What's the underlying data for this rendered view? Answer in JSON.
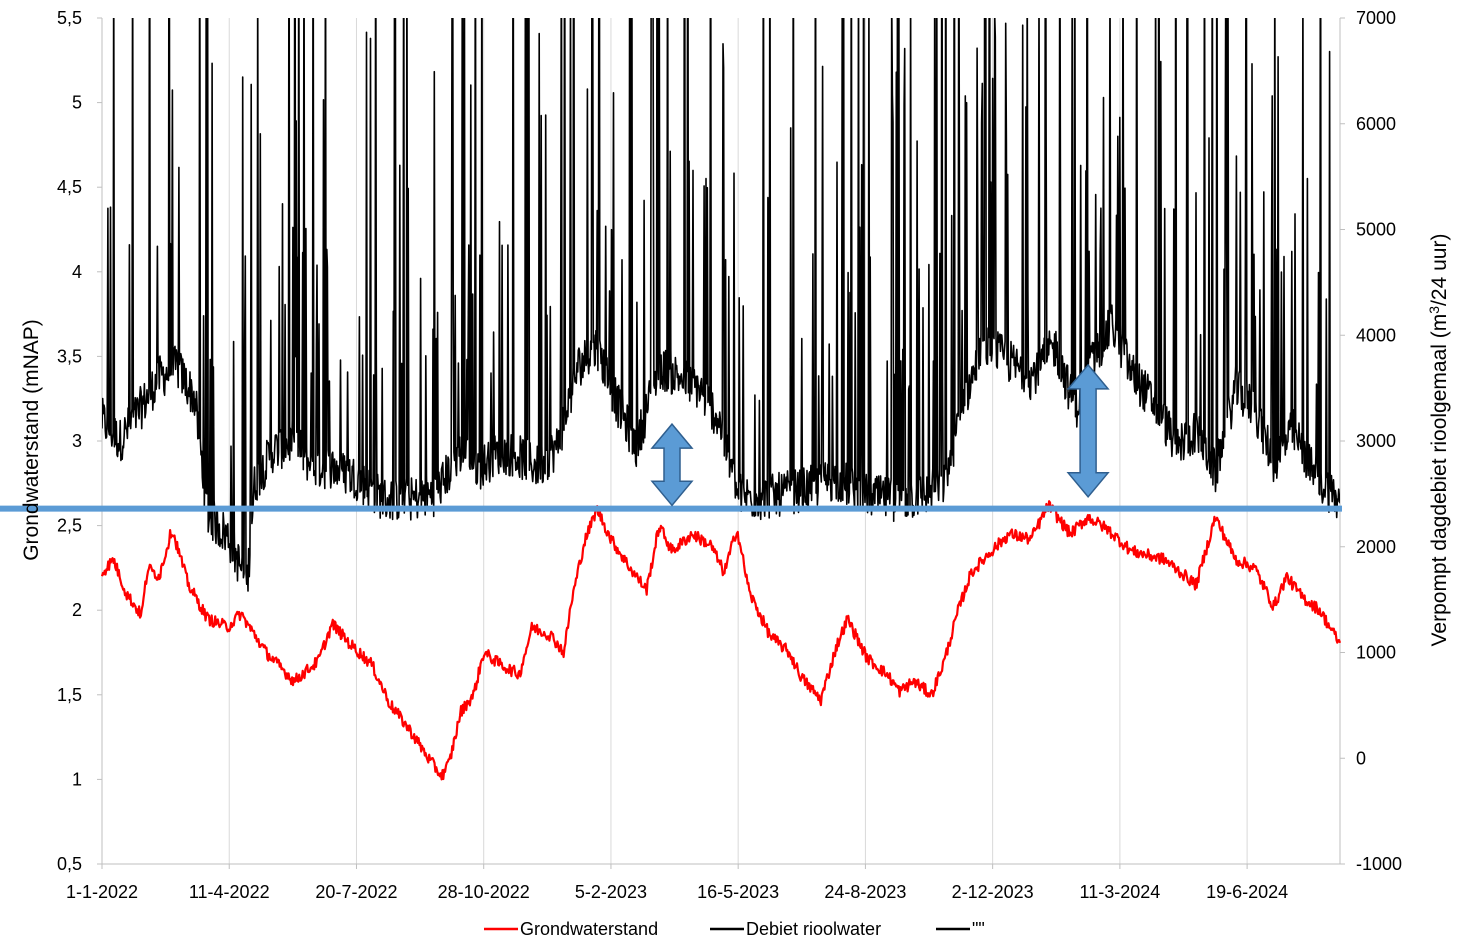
{
  "chart_data": {
    "type": "line",
    "x_ticks": [
      "1-1-2022",
      "11-4-2022",
      "20-7-2022",
      "28-10-2022",
      "5-2-2023",
      "16-5-2023",
      "24-8-2023",
      "2-12-2023",
      "11-3-2024",
      "19-6-2024"
    ],
    "x_range": [
      "2022-01-01",
      "2024-08-31"
    ],
    "y_left": {
      "label": "Grondwaterstand (mNAP)",
      "range": [
        0.5,
        5.5
      ],
      "ticks": [
        "0,5",
        "1",
        "1,5",
        "2",
        "2,5",
        "3",
        "3,5",
        "4",
        "4,5",
        "5",
        "5,5"
      ]
    },
    "y_right": {
      "label_prefix": "Verpompt dagdebiet rioolgemaal (m",
      "label_sup": "3",
      "label_suffix": "/24 uur)",
      "range": [
        -1000,
        7000
      ],
      "ticks": [
        "-1000",
        "0",
        "1000",
        "2000",
        "3000",
        "4000",
        "5000",
        "6000",
        "7000"
      ]
    },
    "grid": "vertical",
    "legend_position": "bottom",
    "series": [
      {
        "name": "Grondwaterstand",
        "axis": "left",
        "color": "#ff0000",
        "points": [
          [
            "2022-01-01",
            2.22
          ],
          [
            "2022-01-10",
            2.3
          ],
          [
            "2022-01-20",
            2.1
          ],
          [
            "2022-02-01",
            1.97
          ],
          [
            "2022-02-06",
            2.25
          ],
          [
            "2022-02-15",
            2.2
          ],
          [
            "2022-02-25",
            2.48
          ],
          [
            "2022-03-10",
            2.15
          ],
          [
            "2022-03-25",
            1.95
          ],
          [
            "2022-04-10",
            1.9
          ],
          [
            "2022-04-20",
            1.98
          ],
          [
            "2022-05-10",
            1.75
          ],
          [
            "2022-06-01",
            1.58
          ],
          [
            "2022-06-20",
            1.7
          ],
          [
            "2022-07-01",
            1.92
          ],
          [
            "2022-07-15",
            1.8
          ],
          [
            "2022-08-01",
            1.68
          ],
          [
            "2022-08-15",
            1.45
          ],
          [
            "2022-09-01",
            1.28
          ],
          [
            "2022-09-15",
            1.12
          ],
          [
            "2022-09-25",
            1.02
          ],
          [
            "2022-10-01",
            1.1
          ],
          [
            "2022-10-10",
            1.4
          ],
          [
            "2022-10-20",
            1.5
          ],
          [
            "2022-10-28",
            1.75
          ],
          [
            "2022-11-10",
            1.68
          ],
          [
            "2022-11-25",
            1.62
          ],
          [
            "2022-12-05",
            1.9
          ],
          [
            "2022-12-20",
            1.85
          ],
          [
            "2022-12-30",
            1.75
          ],
          [
            "2023-01-05",
            2.05
          ],
          [
            "2023-01-15",
            2.4
          ],
          [
            "2023-01-25",
            2.6
          ],
          [
            "2023-02-05",
            2.42
          ],
          [
            "2023-02-20",
            2.25
          ],
          [
            "2023-03-05",
            2.12
          ],
          [
            "2023-03-15",
            2.5
          ],
          [
            "2023-03-25",
            2.35
          ],
          [
            "2023-04-10",
            2.45
          ],
          [
            "2023-04-25",
            2.38
          ],
          [
            "2023-05-05",
            2.22
          ],
          [
            "2023-05-15",
            2.48
          ],
          [
            "2023-05-25",
            2.1
          ],
          [
            "2023-06-10",
            1.85
          ],
          [
            "2023-06-25",
            1.75
          ],
          [
            "2023-07-05",
            1.6
          ],
          [
            "2023-07-20",
            1.47
          ],
          [
            "2023-08-01",
            1.78
          ],
          [
            "2023-08-10",
            1.95
          ],
          [
            "2023-08-25",
            1.72
          ],
          [
            "2023-09-10",
            1.62
          ],
          [
            "2023-09-20",
            1.52
          ],
          [
            "2023-10-01",
            1.58
          ],
          [
            "2023-10-15",
            1.5
          ],
          [
            "2023-10-25",
            1.7
          ],
          [
            "2023-11-05",
            2.0
          ],
          [
            "2023-11-15",
            2.22
          ],
          [
            "2023-12-01",
            2.35
          ],
          [
            "2023-12-15",
            2.45
          ],
          [
            "2024-01-01",
            2.42
          ],
          [
            "2024-01-15",
            2.62
          ],
          [
            "2024-02-01",
            2.45
          ],
          [
            "2024-02-15",
            2.55
          ],
          [
            "2024-03-01",
            2.48
          ],
          [
            "2024-03-20",
            2.35
          ],
          [
            "2024-04-15",
            2.3
          ],
          [
            "2024-05-10",
            2.15
          ],
          [
            "2024-05-25",
            2.55
          ],
          [
            "2024-06-10",
            2.3
          ],
          [
            "2024-06-25",
            2.25
          ],
          [
            "2024-07-10",
            2.02
          ],
          [
            "2024-07-20",
            2.2
          ],
          [
            "2024-08-01",
            2.08
          ],
          [
            "2024-08-15",
            2.0
          ],
          [
            "2024-08-31",
            1.8
          ]
        ]
      },
      {
        "name": "Debiet rioolwater",
        "axis": "right",
        "color": "#000000",
        "points": [
          [
            "2022-01-01",
            3200
          ],
          [
            "2022-01-15",
            3000
          ],
          [
            "2022-01-31",
            3300
          ],
          [
            "2022-02-15",
            3600
          ],
          [
            "2022-03-01",
            3700
          ],
          [
            "2022-03-15",
            3400
          ],
          [
            "2022-03-25",
            2300
          ],
          [
            "2022-04-10",
            2100
          ],
          [
            "2022-04-25",
            1650
          ],
          [
            "2022-05-01",
            2600
          ],
          [
            "2022-05-15",
            2900
          ],
          [
            "2022-06-01",
            3000
          ],
          [
            "2022-06-15",
            2750
          ],
          [
            "2022-07-01",
            2750
          ],
          [
            "2022-07-20",
            2650
          ],
          [
            "2022-08-10",
            2450
          ],
          [
            "2022-09-01",
            2450
          ],
          [
            "2022-09-20",
            2500
          ],
          [
            "2022-10-10",
            2900
          ],
          [
            "2022-10-25",
            2750
          ],
          [
            "2022-11-10",
            2900
          ],
          [
            "2022-11-25",
            2850
          ],
          [
            "2022-12-10",
            2750
          ],
          [
            "2022-12-25",
            2950
          ],
          [
            "2023-01-10",
            3700
          ],
          [
            "2023-01-25",
            3900
          ],
          [
            "2023-02-10",
            3350
          ],
          [
            "2023-02-25",
            2950
          ],
          [
            "2023-03-05",
            3300
          ],
          [
            "2023-03-15",
            3700
          ],
          [
            "2023-04-01",
            3600
          ],
          [
            "2023-04-15",
            3500
          ],
          [
            "2023-05-01",
            3200
          ],
          [
            "2023-05-15",
            2500
          ],
          [
            "2023-06-01",
            2450
          ],
          [
            "2023-06-20",
            2500
          ],
          [
            "2023-07-10",
            2550
          ],
          [
            "2023-08-01",
            2650
          ],
          [
            "2023-08-20",
            2500
          ],
          [
            "2023-09-10",
            2450
          ],
          [
            "2023-09-25",
            2450
          ],
          [
            "2023-10-10",
            2500
          ],
          [
            "2023-10-25",
            2600
          ],
          [
            "2023-11-10",
            3400
          ],
          [
            "2023-11-25",
            3900
          ],
          [
            "2023-12-10",
            3800
          ],
          [
            "2024-01-01",
            3600
          ],
          [
            "2024-01-20",
            3900
          ],
          [
            "2024-02-05",
            3300
          ],
          [
            "2024-02-20",
            3800
          ],
          [
            "2024-03-05",
            4100
          ],
          [
            "2024-03-20",
            3650
          ],
          [
            "2024-04-10",
            3300
          ],
          [
            "2024-04-25",
            2950
          ],
          [
            "2024-05-10",
            3100
          ],
          [
            "2024-05-25",
            2700
          ],
          [
            "2024-06-10",
            3500
          ],
          [
            "2024-06-25",
            3300
          ],
          [
            "2024-07-10",
            2800
          ],
          [
            "2024-07-25",
            3100
          ],
          [
            "2024-08-10",
            2700
          ],
          [
            "2024-08-25",
            2500
          ],
          [
            "2024-08-31",
            2400
          ]
        ]
      },
      {
        "name": "\"\"",
        "axis": "right",
        "color": "#000000",
        "points": []
      }
    ],
    "annotations": {
      "reference_line": {
        "axis": "left",
        "value": 2.6,
        "color": "#5b9bd5"
      },
      "arrows": [
        {
          "x": "2023-03-25",
          "from": 2.62,
          "to": 3.1,
          "color": "#5b9bd5"
        },
        {
          "x": "2024-02-15",
          "from": 2.67,
          "to": 3.45,
          "color": "#5b9bd5"
        }
      ]
    }
  }
}
